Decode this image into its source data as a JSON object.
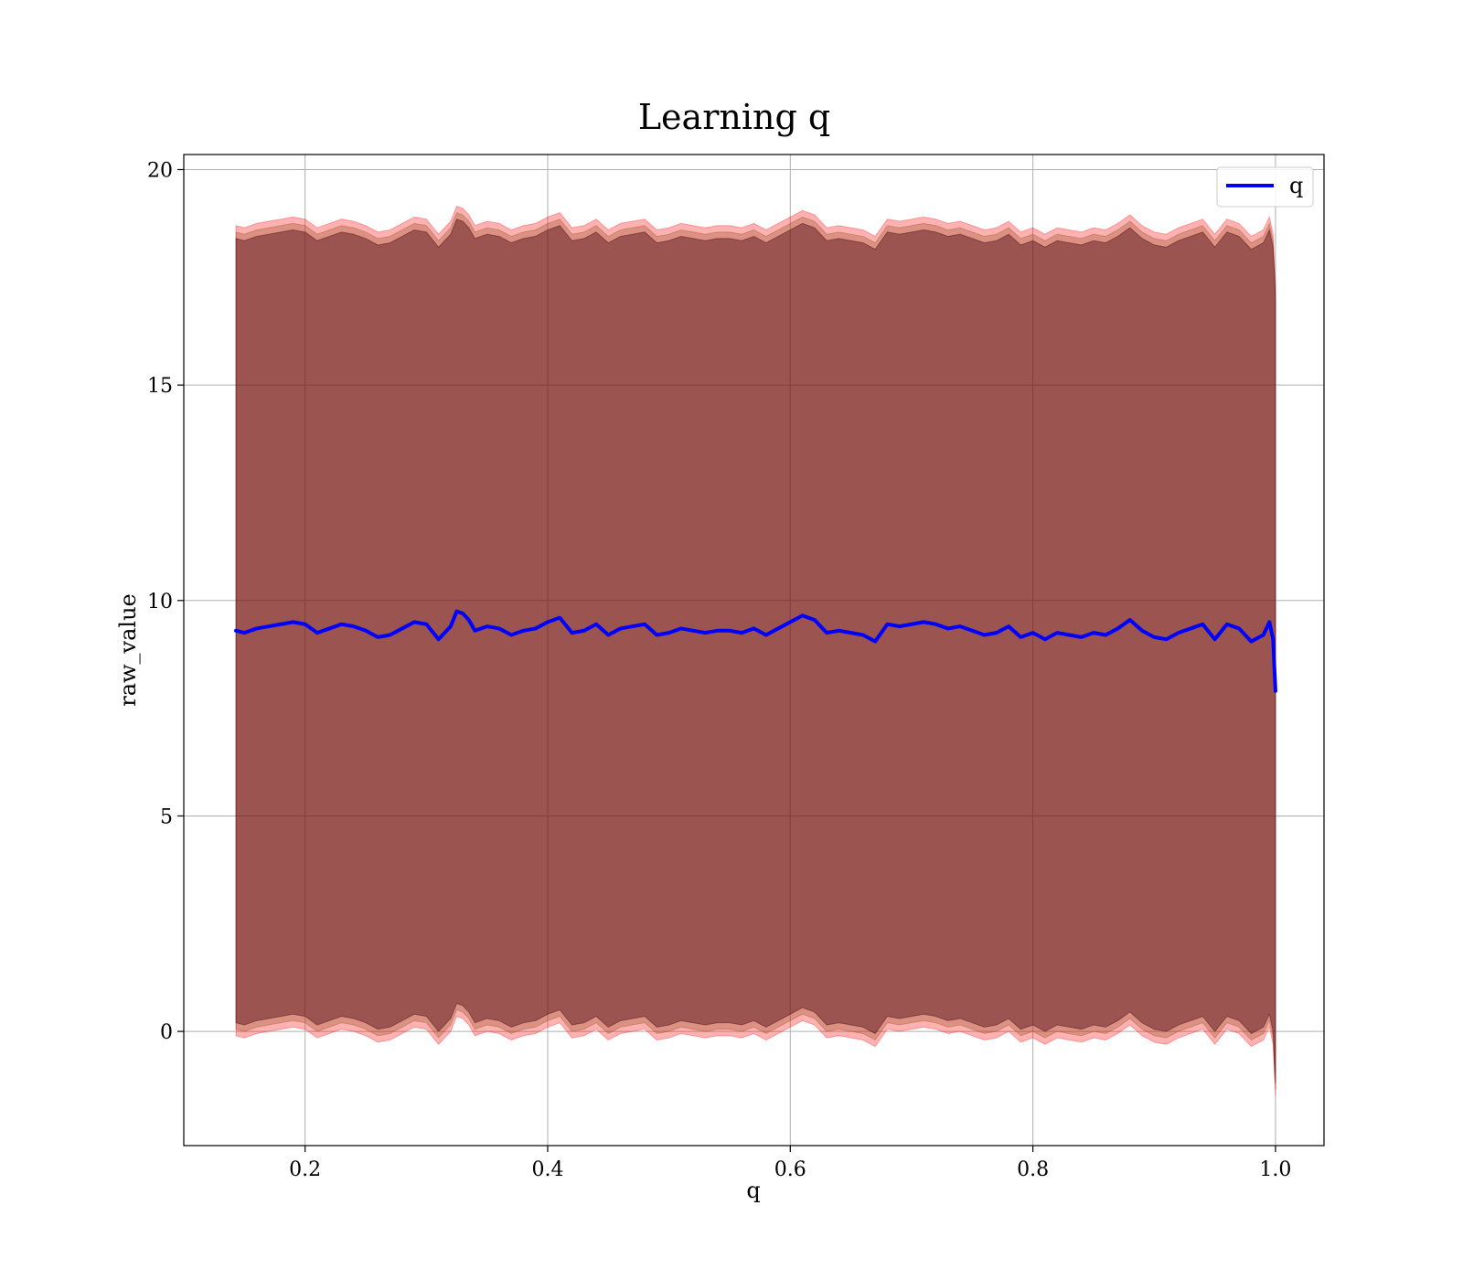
{
  "chart_data": {
    "type": "line",
    "title": "Learning q",
    "xlabel": "q",
    "ylabel": "raw_value",
    "xlim": [
      0.1,
      1.04
    ],
    "ylim": [
      -2.65,
      20.35
    ],
    "xticks": [
      0.2,
      0.4,
      0.6,
      0.8,
      1.0
    ],
    "xtick_labels": [
      "0.2",
      "0.4",
      "0.6",
      "0.8",
      "1.0"
    ],
    "yticks": [
      0,
      5,
      10,
      15,
      20
    ],
    "ytick_labels": [
      "0",
      "5",
      "10",
      "15",
      "20"
    ],
    "grid": true,
    "legend": {
      "location": "top-right",
      "entries": [
        "q"
      ]
    },
    "series": [
      {
        "name": "q",
        "color": "#0000ff",
        "x": [
          0.143,
          0.15,
          0.16,
          0.17,
          0.18,
          0.19,
          0.2,
          0.21,
          0.22,
          0.23,
          0.24,
          0.25,
          0.26,
          0.27,
          0.28,
          0.29,
          0.3,
          0.31,
          0.32,
          0.325,
          0.33,
          0.335,
          0.34,
          0.35,
          0.36,
          0.37,
          0.38,
          0.39,
          0.4,
          0.41,
          0.42,
          0.43,
          0.44,
          0.45,
          0.46,
          0.47,
          0.48,
          0.49,
          0.5,
          0.51,
          0.52,
          0.53,
          0.54,
          0.55,
          0.56,
          0.57,
          0.58,
          0.59,
          0.6,
          0.61,
          0.62,
          0.63,
          0.64,
          0.65,
          0.66,
          0.67,
          0.68,
          0.69,
          0.7,
          0.71,
          0.72,
          0.73,
          0.74,
          0.75,
          0.76,
          0.77,
          0.78,
          0.79,
          0.8,
          0.81,
          0.82,
          0.83,
          0.84,
          0.85,
          0.86,
          0.87,
          0.88,
          0.89,
          0.9,
          0.91,
          0.92,
          0.93,
          0.94,
          0.95,
          0.96,
          0.97,
          0.98,
          0.99,
          0.995,
          0.998,
          1.0
        ],
        "y": [
          9.3,
          9.25,
          9.35,
          9.4,
          9.45,
          9.5,
          9.45,
          9.25,
          9.35,
          9.45,
          9.4,
          9.3,
          9.15,
          9.2,
          9.35,
          9.5,
          9.45,
          9.1,
          9.4,
          9.75,
          9.7,
          9.55,
          9.3,
          9.4,
          9.35,
          9.2,
          9.3,
          9.35,
          9.5,
          9.6,
          9.25,
          9.3,
          9.45,
          9.2,
          9.35,
          9.4,
          9.45,
          9.2,
          9.25,
          9.35,
          9.3,
          9.25,
          9.3,
          9.3,
          9.25,
          9.35,
          9.2,
          9.35,
          9.5,
          9.65,
          9.55,
          9.25,
          9.3,
          9.25,
          9.2,
          9.05,
          9.45,
          9.4,
          9.45,
          9.5,
          9.45,
          9.35,
          9.4,
          9.3,
          9.2,
          9.25,
          9.4,
          9.15,
          9.25,
          9.1,
          9.25,
          9.2,
          9.15,
          9.25,
          9.2,
          9.35,
          9.55,
          9.3,
          9.15,
          9.1,
          9.25,
          9.35,
          9.45,
          9.1,
          9.45,
          9.35,
          9.05,
          9.2,
          9.5,
          9.1,
          7.9
        ],
        "band_outer": {
          "color": "#ff0000",
          "alpha": 0.3,
          "half_width": 9.4
        },
        "band_inner": {
          "color": "#8b4513",
          "alpha": 0.3,
          "half_width": 9.25
        },
        "band_core": {
          "color": "#4b0a14",
          "alpha": 0.45,
          "half_width": 9.1
        }
      }
    ]
  }
}
